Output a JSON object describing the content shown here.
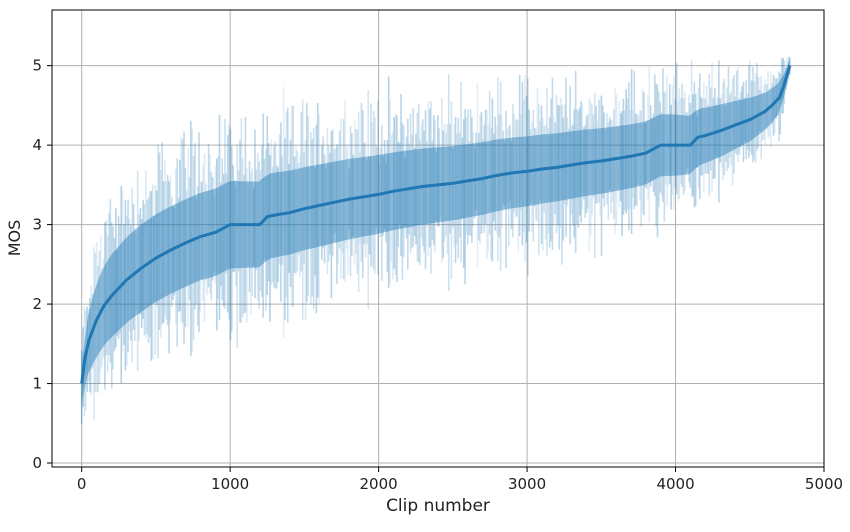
{
  "chart_data": {
    "type": "line",
    "title": "",
    "xlabel": "Clip number",
    "ylabel": "MOS",
    "xlim": [
      -200,
      5000
    ],
    "ylim": [
      -0.05,
      5.7
    ],
    "xticks": [
      0,
      1000,
      2000,
      3000,
      4000,
      5000
    ],
    "xtick_labels": [
      "0",
      "1000",
      "2000",
      "3000",
      "4000",
      "5000"
    ],
    "yticks": [
      0,
      1,
      2,
      3,
      4,
      5
    ],
    "ytick_labels": [
      "0",
      "1",
      "2",
      "3",
      "4",
      "5"
    ],
    "grid": true,
    "series_color": "#1f77b4",
    "errorbar_color": "#1f77b4",
    "n_clips": 4770,
    "mean_curve": {
      "x": [
        0,
        25,
        50,
        100,
        150,
        200,
        300,
        400,
        500,
        600,
        700,
        800,
        900,
        950,
        1000,
        1100,
        1200,
        1250,
        1300,
        1400,
        1500,
        1600,
        1700,
        1800,
        1900,
        2000,
        2100,
        2200,
        2300,
        2400,
        2500,
        2600,
        2700,
        2800,
        2900,
        3000,
        3100,
        3200,
        3300,
        3400,
        3500,
        3600,
        3700,
        3800,
        3900,
        4000,
        4100,
        4150,
        4200,
        4300,
        4400,
        4500,
        4600,
        4650,
        4700,
        4730,
        4750,
        4770
      ],
      "y": [
        1.0,
        1.35,
        1.55,
        1.8,
        1.98,
        2.1,
        2.3,
        2.45,
        2.58,
        2.68,
        2.77,
        2.85,
        2.9,
        2.95,
        3.0,
        3.0,
        3.0,
        3.1,
        3.12,
        3.15,
        3.2,
        3.24,
        3.28,
        3.32,
        3.35,
        3.38,
        3.42,
        3.45,
        3.48,
        3.5,
        3.52,
        3.55,
        3.58,
        3.62,
        3.65,
        3.67,
        3.7,
        3.72,
        3.75,
        3.78,
        3.8,
        3.83,
        3.86,
        3.9,
        4.0,
        4.0,
        4.0,
        4.1,
        4.12,
        4.18,
        4.25,
        4.32,
        4.42,
        4.5,
        4.6,
        4.75,
        4.88,
        5.0
      ]
    },
    "errorbar_spread": {
      "x": [
        0,
        50,
        100,
        200,
        400,
        600,
        800,
        1000,
        1500,
        2000,
        2500,
        3000,
        3500,
        4000,
        4300,
        4500,
        4700,
        4770
      ],
      "halfwidth": [
        0.45,
        0.7,
        0.85,
        0.95,
        1.0,
        1.0,
        1.0,
        1.0,
        0.95,
        0.9,
        0.85,
        0.8,
        0.75,
        0.7,
        0.6,
        0.5,
        0.35,
        0.15
      ]
    }
  }
}
